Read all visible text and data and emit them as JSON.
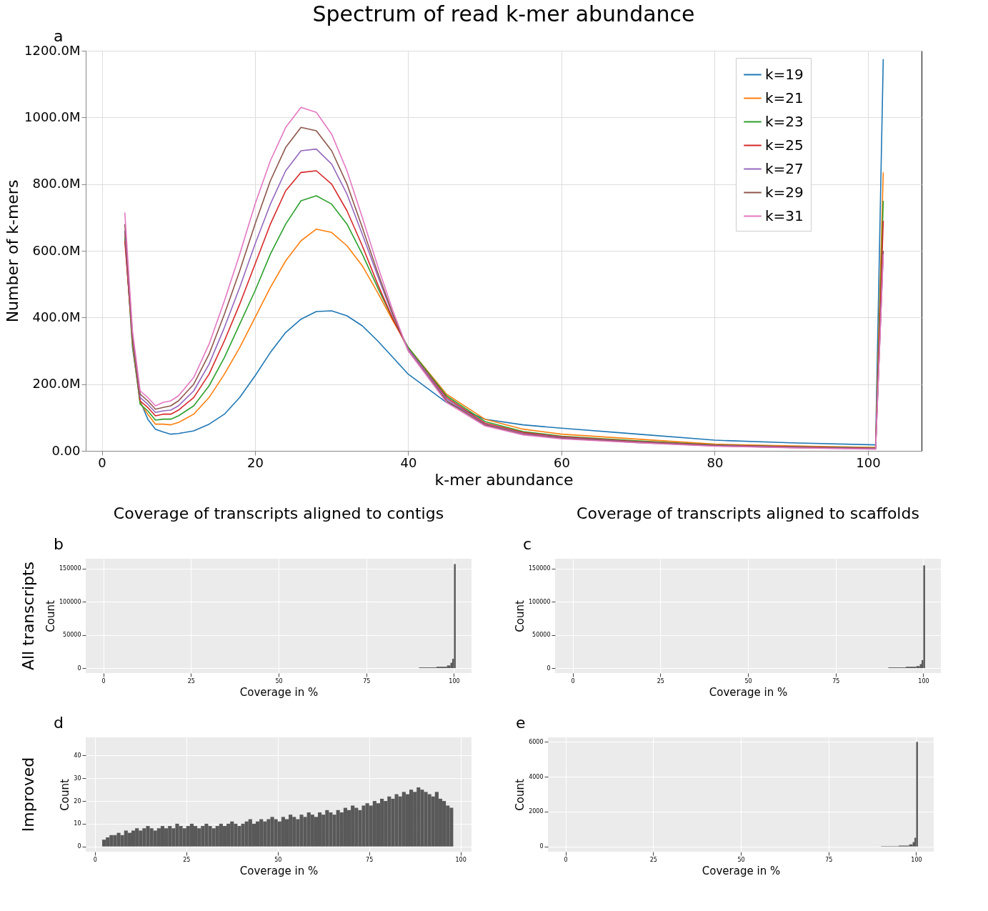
{
  "chart_data": [
    {
      "type": "line",
      "title": "Spectrum of read k-mer abundance",
      "xlabel": "k-mer abundance",
      "ylabel": "Number of k-mers",
      "annotations": [
        "a"
      ],
      "x": [
        3,
        4,
        5,
        6,
        7,
        8,
        9,
        10,
        12,
        14,
        16,
        18,
        20,
        22,
        24,
        26,
        28,
        30,
        32,
        34,
        36,
        38,
        40,
        45,
        50,
        55,
        60,
        70,
        80,
        90,
        101,
        102
      ],
      "series": [
        {
          "name": "k=19",
          "color": "#1f77b4",
          "values": [
            660,
            310,
            150,
            95,
            65,
            57,
            50,
            52,
            60,
            80,
            110,
            160,
            225,
            295,
            355,
            395,
            418,
            420,
            405,
            375,
            330,
            280,
            230,
            145,
            95,
            78,
            68,
            50,
            32,
            24,
            18,
            1175
          ]
        },
        {
          "name": "k=21",
          "color": "#ff7f0e",
          "values": [
            650,
            320,
            145,
            110,
            80,
            80,
            78,
            85,
            110,
            160,
            230,
            310,
            400,
            490,
            570,
            630,
            665,
            655,
            615,
            555,
            475,
            390,
            310,
            170,
            95,
            65,
            50,
            35,
            20,
            15,
            10,
            835
          ]
        },
        {
          "name": "k=23",
          "color": "#2ca02c",
          "values": [
            640,
            330,
            140,
            120,
            92,
            95,
            95,
            105,
            135,
            195,
            280,
            380,
            480,
            590,
            680,
            750,
            765,
            740,
            680,
            590,
            490,
            395,
            310,
            165,
            88,
            58,
            44,
            30,
            18,
            13,
            9,
            750
          ]
        },
        {
          "name": "k=25",
          "color": "#d62728",
          "values": [
            630,
            340,
            150,
            130,
            105,
            110,
            110,
            122,
            160,
            230,
            330,
            440,
            560,
            680,
            780,
            835,
            840,
            800,
            720,
            615,
            500,
            395,
            305,
            160,
            83,
            55,
            42,
            28,
            17,
            12,
            8,
            690
          ]
        },
        {
          "name": "k=27",
          "color": "#9467bd",
          "values": [
            660,
            345,
            160,
            140,
            115,
            120,
            122,
            135,
            180,
            260,
            370,
            490,
            620,
            740,
            840,
            900,
            905,
            860,
            770,
            650,
            525,
            405,
            305,
            155,
            80,
            52,
            40,
            26,
            16,
            11,
            7,
            600
          ]
        },
        {
          "name": "k=29",
          "color": "#8c564b",
          "values": [
            680,
            350,
            170,
            150,
            125,
            130,
            135,
            150,
            200,
            290,
            410,
            540,
            680,
            810,
            910,
            970,
            960,
            900,
            800,
            670,
            535,
            410,
            300,
            150,
            78,
            50,
            38,
            25,
            15,
            10,
            6,
            600
          ]
        },
        {
          "name": "k=31",
          "color": "#e377c2",
          "values": [
            715,
            360,
            180,
            160,
            135,
            145,
            150,
            165,
            220,
            320,
            450,
            590,
            740,
            870,
            970,
            1030,
            1015,
            950,
            840,
            700,
            555,
            420,
            300,
            145,
            75,
            48,
            36,
            24,
            14,
            9,
            5,
            590
          ]
        }
      ],
      "xlim": [
        -2.1,
        107
      ],
      "xticks": [
        0,
        20,
        40,
        60,
        80,
        100
      ],
      "ylim": [
        0,
        1200
      ],
      "yticks": [
        {
          "value": 0,
          "label": "0.00"
        },
        {
          "value": 200,
          "label": "200.0M"
        },
        {
          "value": 400,
          "label": "400.0M"
        },
        {
          "value": 600,
          "label": "600.0M"
        },
        {
          "value": 800,
          "label": "800.0M"
        },
        {
          "value": 1000,
          "label": "1000.0M"
        },
        {
          "value": 1200,
          "label": "1200.0M"
        }
      ],
      "grid": true,
      "legend": "top right"
    },
    {
      "type": "histogram",
      "title": "Coverage of transcripts aligned to contigs",
      "xlabel": "Coverage in %",
      "ylabel": "Count",
      "annotations": [
        "b",
        "All transcripts"
      ],
      "bins": [
        90,
        95,
        98,
        99,
        99.5,
        100,
        100.5
      ],
      "values": [
        1000,
        2000,
        4000,
        8000,
        14000,
        157000
      ],
      "xlim": [
        -5,
        105
      ],
      "xticks": [
        0,
        25,
        50,
        75,
        100
      ],
      "ylim": [
        -7500,
        165000
      ],
      "yticks": [
        0,
        50000,
        100000,
        150000
      ],
      "grid": true
    },
    {
      "type": "histogram",
      "title": "Coverage of transcripts aligned to scaffolds",
      "xlabel": "Coverage in %",
      "ylabel": "Count",
      "annotations": [
        "c"
      ],
      "bins": [
        90,
        95,
        98,
        99,
        99.5,
        100,
        100.5
      ],
      "values": [
        1000,
        2000,
        3000,
        6000,
        12000,
        155000
      ],
      "xlim": [
        -5,
        105
      ],
      "xticks": [
        0,
        25,
        50,
        75,
        100
      ],
      "ylim": [
        -7500,
        165000
      ],
      "yticks": [
        0,
        50000,
        100000,
        150000
      ],
      "grid": true
    },
    {
      "type": "histogram",
      "xlabel": "Coverage in %",
      "ylabel": "Count",
      "annotations": [
        "d",
        "Improved"
      ],
      "bins": [
        2,
        3,
        4,
        5,
        6,
        7,
        8,
        9,
        10,
        11,
        12,
        13,
        14,
        15,
        16,
        17,
        18,
        19,
        20,
        21,
        22,
        23,
        24,
        25,
        26,
        27,
        28,
        29,
        30,
        31,
        32,
        33,
        34,
        35,
        36,
        37,
        38,
        39,
        40,
        41,
        42,
        43,
        44,
        45,
        46,
        47,
        48,
        49,
        50,
        51,
        52,
        53,
        54,
        55,
        56,
        57,
        58,
        59,
        60,
        61,
        62,
        63,
        64,
        65,
        66,
        67,
        68,
        69,
        70,
        71,
        72,
        73,
        74,
        75,
        76,
        77,
        78,
        79,
        80,
        81,
        82,
        83,
        84,
        85,
        86,
        87,
        88,
        89,
        90,
        91,
        92,
        93,
        94,
        95,
        96,
        97,
        98
      ],
      "values": [
        3,
        4,
        5,
        5,
        6,
        5,
        7,
        6,
        7,
        8,
        7,
        8,
        9,
        8,
        7,
        8,
        9,
        8,
        9,
        8,
        10,
        9,
        8,
        9,
        10,
        9,
        8,
        9,
        10,
        9,
        8,
        9,
        10,
        9,
        10,
        11,
        10,
        9,
        10,
        11,
        12,
        10,
        11,
        12,
        11,
        12,
        13,
        12,
        11,
        13,
        12,
        14,
        13,
        12,
        14,
        13,
        15,
        14,
        13,
        15,
        14,
        16,
        15,
        14,
        16,
        15,
        17,
        16,
        18,
        17,
        16,
        18,
        19,
        18,
        20,
        19,
        21,
        20,
        22,
        21,
        23,
        22,
        24,
        23,
        25,
        24,
        26,
        25,
        24,
        23,
        22,
        24,
        21,
        20,
        18,
        17
      ],
      "xlim": [
        -2.5,
        103
      ],
      "xticks": [
        0,
        25,
        50,
        75,
        100
      ],
      "ylim": [
        -2.3,
        48
      ],
      "yticks": [
        0,
        10,
        20,
        30,
        40
      ],
      "grid": true
    },
    {
      "type": "histogram",
      "xlabel": "Coverage in %",
      "ylabel": "Count",
      "annotations": [
        "e"
      ],
      "bins": [
        90,
        95,
        98,
        99,
        99.5,
        100,
        100.5
      ],
      "values": [
        20,
        50,
        120,
        250,
        500,
        6000
      ],
      "xlim": [
        -5,
        105
      ],
      "xticks": [
        0,
        25,
        50,
        75,
        100
      ],
      "ylim": [
        -300,
        6260
      ],
      "yticks": [
        0,
        2000,
        4000,
        6000
      ],
      "grid": true
    }
  ]
}
